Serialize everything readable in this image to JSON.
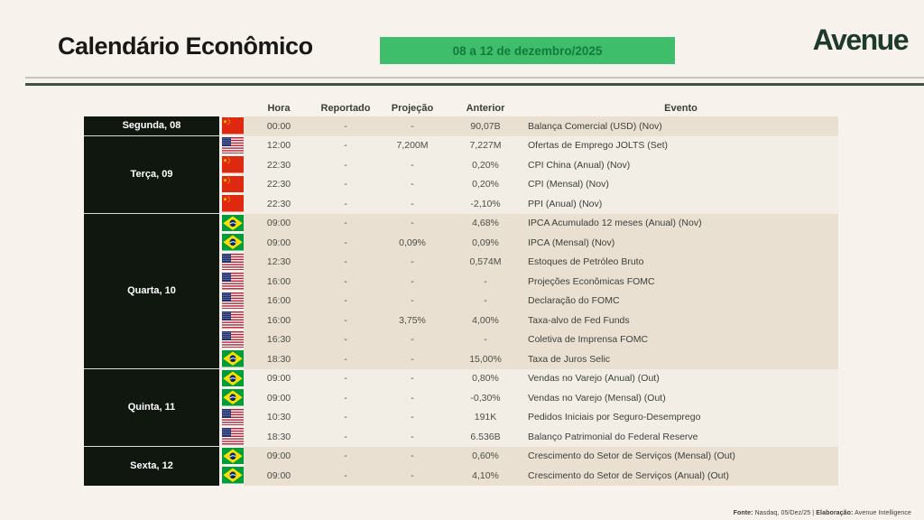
{
  "header": {
    "title": "Calendário Econômico",
    "date_range": "08 a 12 de dezembro/2025",
    "brand": "Avenue"
  },
  "colors": {
    "page_background": "#f7f3ec",
    "accent_green": "#3ebe6b",
    "badge_text_green": "#147a3c",
    "brand_green": "#1d3a2d",
    "day_cell_background": "#0f170f",
    "row_beige": "#eae0d1",
    "row_light": "#f3eee5"
  },
  "table": {
    "columns": [
      "Hora",
      "Reportado",
      "Projeção",
      "Anterior",
      "Evento"
    ],
    "groups": [
      {
        "day": "Segunda, 08",
        "rows": [
          {
            "flag": "cn",
            "hora": "00:00",
            "reportado": "-",
            "projecao": "-",
            "anterior": "90,07B",
            "evento": "Balança Comercial (USD) (Nov)"
          }
        ]
      },
      {
        "day": "Terça, 09",
        "rows": [
          {
            "flag": "us",
            "hora": "12:00",
            "reportado": "-",
            "projecao": "7,200M",
            "anterior": "7,227M",
            "evento": "Ofertas de Emprego JOLTS (Set)"
          },
          {
            "flag": "cn",
            "hora": "22:30",
            "reportado": "-",
            "projecao": "-",
            "anterior": "0,20%",
            "evento": "CPI China (Anual) (Nov)"
          },
          {
            "flag": "cn",
            "hora": "22:30",
            "reportado": "-",
            "projecao": "-",
            "anterior": "0,20%",
            "evento": "CPI (Mensal) (Nov)"
          },
          {
            "flag": "cn",
            "hora": "22:30",
            "reportado": "-",
            "projecao": "-",
            "anterior": "-2,10%",
            "evento": "PPI (Anual) (Nov)"
          }
        ]
      },
      {
        "day": "Quarta, 10",
        "rows": [
          {
            "flag": "br",
            "hora": "09:00",
            "reportado": "-",
            "projecao": "-",
            "anterior": "4,68%",
            "evento": "IPCA Acumulado 12 meses (Anual) (Nov)"
          },
          {
            "flag": "br",
            "hora": "09:00",
            "reportado": "-",
            "projecao": "0,09%",
            "anterior": "0,09%",
            "evento": "IPCA (Mensal) (Nov)"
          },
          {
            "flag": "us",
            "hora": "12:30",
            "reportado": "-",
            "projecao": "-",
            "anterior": "0,574M",
            "evento": "Estoques de Petróleo Bruto"
          },
          {
            "flag": "us",
            "hora": "16:00",
            "reportado": "-",
            "projecao": "-",
            "anterior": "-",
            "evento": "Projeções Econômicas FOMC"
          },
          {
            "flag": "us",
            "hora": "16:00",
            "reportado": "-",
            "projecao": "-",
            "anterior": "-",
            "evento": "Declaração do FOMC"
          },
          {
            "flag": "us",
            "hora": "16:00",
            "reportado": "-",
            "projecao": "3,75%",
            "anterior": "4,00%",
            "evento": "Taxa-alvo de Fed Funds"
          },
          {
            "flag": "us",
            "hora": "16:30",
            "reportado": "-",
            "projecao": "-",
            "anterior": "-",
            "evento": "Coletiva de Imprensa FOMC"
          },
          {
            "flag": "br",
            "hora": "18:30",
            "reportado": "-",
            "projecao": "-",
            "anterior": "15,00%",
            "evento": "Taxa de Juros Selic"
          }
        ]
      },
      {
        "day": "Quinta, 11",
        "rows": [
          {
            "flag": "br",
            "hora": "09:00",
            "reportado": "-",
            "projecao": "-",
            "anterior": "0,80%",
            "evento": "Vendas no Varejo (Anual) (Out)"
          },
          {
            "flag": "br",
            "hora": "09:00",
            "reportado": "-",
            "projecao": "-",
            "anterior": "-0,30%",
            "evento": "Vendas no Varejo (Mensal) (Out)"
          },
          {
            "flag": "us",
            "hora": "10:30",
            "reportado": "-",
            "projecao": "-",
            "anterior": "191K",
            "evento": "Pedidos Iniciais por Seguro-Desemprego"
          },
          {
            "flag": "us",
            "hora": "18:30",
            "reportado": "-",
            "projecao": "-",
            "anterior": "6.536B",
            "evento": "Balanço Patrimonial do Federal Reserve"
          }
        ]
      },
      {
        "day": "Sexta, 12",
        "rows": [
          {
            "flag": "br",
            "hora": "09:00",
            "reportado": "-",
            "projecao": "-",
            "anterior": "0,60%",
            "evento": "Crescimento do Setor de Serviços (Mensal) (Out)"
          },
          {
            "flag": "br",
            "hora": "09:00",
            "reportado": "-",
            "projecao": "-",
            "anterior": "4,10%",
            "evento": "Crescimento do Setor de Serviços (Anual) (Out)"
          }
        ]
      }
    ]
  },
  "footer": {
    "fonte_label": "Fonte:",
    "fonte_value": " Nasdaq, 05/Dez/25 | ",
    "elaboracao_label": "Elaboração:",
    "elaboracao_value": " Avenue Intelligence"
  }
}
